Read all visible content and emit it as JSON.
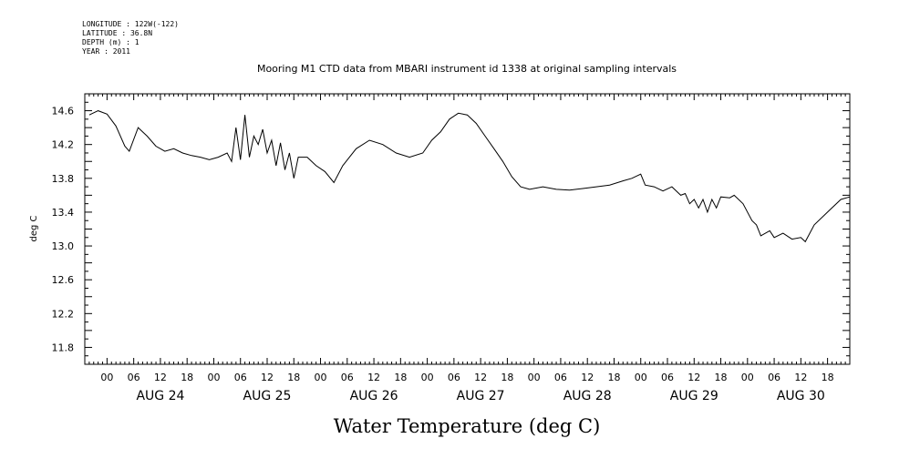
{
  "header": {
    "longitude": "LONGITUDE : 122W(-122)",
    "latitude": "LATITUDE : 36.8N",
    "depth": "DEPTH (m) : 1",
    "year": "YEAR : 2011"
  },
  "chart_data": {
    "type": "line",
    "title": "Mooring M1 CTD data from MBARI instrument id 1338 at original sampling intervals",
    "ylabel": "deg C",
    "xlabel": "Water Temperature (deg C)",
    "ylim": [
      11.6,
      14.8
    ],
    "xlim": [
      "2011-08-23T19:00",
      "2011-08-30T23:00"
    ],
    "yticks": [
      "14.6",
      "14.2",
      "13.8",
      "13.4",
      "13.0",
      "12.6",
      "12.2",
      "11.8"
    ],
    "hour_labels": [
      "00",
      "06",
      "12",
      "18",
      "00",
      "06",
      "12",
      "18",
      "00",
      "06",
      "12",
      "18",
      "00",
      "06",
      "12",
      "18",
      "00",
      "06",
      "12",
      "18",
      "00",
      "06",
      "12",
      "18",
      "00",
      "06",
      "12",
      "18"
    ],
    "day_labels": [
      "AUG 24",
      "AUG 25",
      "AUG 26",
      "AUG 27",
      "AUG 28",
      "AUG 29",
      "AUG 30"
    ],
    "series": [
      {
        "color": "#000000",
        "points": [
          [
            "2011-08-23T20:00",
            14.55
          ],
          [
            "2011-08-23T22:00",
            14.6
          ],
          [
            "2011-08-24T00:00",
            14.56
          ],
          [
            "2011-08-24T02:00",
            14.42
          ],
          [
            "2011-08-24T04:00",
            14.18
          ],
          [
            "2011-08-24T05:00",
            14.12
          ],
          [
            "2011-08-24T07:00",
            14.4
          ],
          [
            "2011-08-24T09:00",
            14.3
          ],
          [
            "2011-08-24T11:00",
            14.18
          ],
          [
            "2011-08-24T13:00",
            14.12
          ],
          [
            "2011-08-24T15:00",
            14.15
          ],
          [
            "2011-08-24T17:00",
            14.1
          ],
          [
            "2011-08-24T19:00",
            14.07
          ],
          [
            "2011-08-24T21:00",
            14.05
          ],
          [
            "2011-08-24T23:00",
            14.02
          ],
          [
            "2011-08-25T01:00",
            14.05
          ],
          [
            "2011-08-25T03:00",
            14.1
          ],
          [
            "2011-08-25T04:00",
            14.0
          ],
          [
            "2011-08-25T05:00",
            14.4
          ],
          [
            "2011-08-25T06:00",
            14.02
          ],
          [
            "2011-08-25T07:00",
            14.55
          ],
          [
            "2011-08-25T08:00",
            14.05
          ],
          [
            "2011-08-25T09:00",
            14.3
          ],
          [
            "2011-08-25T10:00",
            14.2
          ],
          [
            "2011-08-25T11:00",
            14.38
          ],
          [
            "2011-08-25T12:00",
            14.1
          ],
          [
            "2011-08-25T13:00",
            14.25
          ],
          [
            "2011-08-25T14:00",
            13.95
          ],
          [
            "2011-08-25T15:00",
            14.22
          ],
          [
            "2011-08-25T16:00",
            13.9
          ],
          [
            "2011-08-25T17:00",
            14.1
          ],
          [
            "2011-08-25T18:00",
            13.8
          ],
          [
            "2011-08-25T19:00",
            14.05
          ],
          [
            "2011-08-25T21:00",
            14.05
          ],
          [
            "2011-08-25T23:00",
            13.95
          ],
          [
            "2011-08-26T01:00",
            13.88
          ],
          [
            "2011-08-26T03:00",
            13.75
          ],
          [
            "2011-08-26T05:00",
            13.95
          ],
          [
            "2011-08-26T08:00",
            14.15
          ],
          [
            "2011-08-26T11:00",
            14.25
          ],
          [
            "2011-08-26T14:00",
            14.2
          ],
          [
            "2011-08-26T17:00",
            14.1
          ],
          [
            "2011-08-26T20:00",
            14.05
          ],
          [
            "2011-08-26T23:00",
            14.1
          ],
          [
            "2011-08-27T01:00",
            14.25
          ],
          [
            "2011-08-27T03:00",
            14.35
          ],
          [
            "2011-08-27T05:00",
            14.5
          ],
          [
            "2011-08-27T07:00",
            14.57
          ],
          [
            "2011-08-27T09:00",
            14.55
          ],
          [
            "2011-08-27T11:00",
            14.45
          ],
          [
            "2011-08-27T13:00",
            14.3
          ],
          [
            "2011-08-27T15:00",
            14.15
          ],
          [
            "2011-08-27T17:00",
            14.0
          ],
          [
            "2011-08-27T19:00",
            13.82
          ],
          [
            "2011-08-27T21:00",
            13.7
          ],
          [
            "2011-08-27T23:00",
            13.67
          ],
          [
            "2011-08-28T02:00",
            13.7
          ],
          [
            "2011-08-28T05:00",
            13.67
          ],
          [
            "2011-08-28T08:00",
            13.66
          ],
          [
            "2011-08-28T11:00",
            13.68
          ],
          [
            "2011-08-28T14:00",
            13.7
          ],
          [
            "2011-08-28T17:00",
            13.72
          ],
          [
            "2011-08-28T20:00",
            13.77
          ],
          [
            "2011-08-28T22:00",
            13.8
          ],
          [
            "2011-08-29T00:00",
            13.85
          ],
          [
            "2011-08-29T01:00",
            13.72
          ],
          [
            "2011-08-29T03:00",
            13.7
          ],
          [
            "2011-08-29T05:00",
            13.65
          ],
          [
            "2011-08-29T07:00",
            13.7
          ],
          [
            "2011-08-29T09:00",
            13.6
          ],
          [
            "2011-08-29T10:00",
            13.62
          ],
          [
            "2011-08-29T11:00",
            13.5
          ],
          [
            "2011-08-29T12:00",
            13.55
          ],
          [
            "2011-08-29T13:00",
            13.45
          ],
          [
            "2011-08-29T14:00",
            13.55
          ],
          [
            "2011-08-29T15:00",
            13.4
          ],
          [
            "2011-08-29T16:00",
            13.55
          ],
          [
            "2011-08-29T17:00",
            13.45
          ],
          [
            "2011-08-29T18:00",
            13.58
          ],
          [
            "2011-08-29T20:00",
            13.57
          ],
          [
            "2011-08-29T21:00",
            13.6
          ],
          [
            "2011-08-29T23:00",
            13.5
          ],
          [
            "2011-08-30T01:00",
            13.3
          ],
          [
            "2011-08-30T02:00",
            13.25
          ],
          [
            "2011-08-30T03:00",
            13.12
          ],
          [
            "2011-08-30T05:00",
            13.18
          ],
          [
            "2011-08-30T06:00",
            13.1
          ],
          [
            "2011-08-30T08:00",
            13.15
          ],
          [
            "2011-08-30T10:00",
            13.08
          ],
          [
            "2011-08-30T12:00",
            13.1
          ],
          [
            "2011-08-30T13:00",
            13.05
          ],
          [
            "2011-08-30T15:00",
            13.25
          ],
          [
            "2011-08-30T18:00",
            13.4
          ],
          [
            "2011-08-30T21:00",
            13.55
          ],
          [
            "2011-08-30T23:00",
            13.58
          ]
        ]
      }
    ],
    "grid": false
  }
}
